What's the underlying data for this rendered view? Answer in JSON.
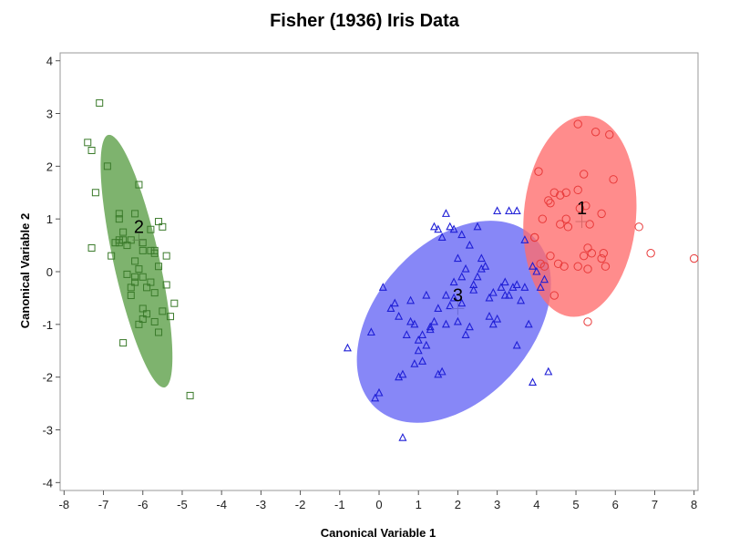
{
  "chart_data": {
    "type": "scatter",
    "title": "Fisher (1936) Iris Data",
    "xlabel": "Canonical Variable 1",
    "ylabel": "Canonical Variable 2",
    "xlim": [
      -8.1,
      8.1
    ],
    "ylim": [
      -4.15,
      4.15
    ],
    "xticks": [
      -8,
      -7,
      -6,
      -5,
      -4,
      -3,
      -2,
      -1,
      0,
      1,
      2,
      3,
      4,
      5,
      6,
      7,
      8
    ],
    "yticks": [
      -4,
      -3,
      -2,
      -1,
      0,
      1,
      2,
      3,
      4
    ],
    "grid": false,
    "legend": "none",
    "series": [
      {
        "label": "2",
        "marker": "square",
        "color": "#3a7a2a",
        "ellipse_color": "#5a9e45",
        "centroid": [
          -6.1,
          0.6
        ],
        "ellipse": {
          "cx": -6.16,
          "cy": 0.2,
          "rx": 2.5,
          "ry": 0.57,
          "angle_deg": -73
        },
        "x": [
          -7.1,
          -7.4,
          -7.3,
          -7.2,
          -6.9,
          -7.3,
          -6.8,
          -6.6,
          -6.6,
          -6.5,
          -6.4,
          -6.3,
          -6.2,
          -6.1,
          -6.0,
          -6.0,
          -6.6,
          -6.5,
          -6.7,
          -6.6,
          -6.2,
          -6.3,
          -6.0,
          -5.9,
          -5.8,
          -5.7,
          -5.6,
          -5.5,
          -5.7,
          -5.8,
          -5.6,
          -5.4,
          -5.2,
          -6.3,
          -6.0,
          -6.0,
          -6.1,
          -6.2,
          -5.5,
          -5.3,
          -5.7,
          -5.6,
          -5.9,
          -6.2,
          -6.4,
          -5.8,
          -5.4,
          -5.7,
          -6.1,
          -6.5,
          -4.8
        ],
        "y": [
          3.2,
          2.45,
          2.3,
          1.5,
          2.0,
          0.45,
          0.3,
          1.0,
          0.55,
          0.6,
          0.5,
          0.6,
          1.1,
          1.65,
          0.4,
          0.55,
          1.1,
          0.75,
          0.55,
          0.6,
          -0.1,
          -0.3,
          -0.1,
          -0.3,
          0.8,
          0.4,
          0.95,
          0.85,
          0.35,
          0.4,
          0.1,
          0.3,
          -0.6,
          -0.45,
          -0.7,
          -0.9,
          0.05,
          0.2,
          -0.75,
          -0.85,
          -0.95,
          -1.15,
          -0.8,
          -0.2,
          -0.05,
          -0.2,
          -0.25,
          -0.4,
          -1.0,
          -1.35,
          -2.35
        ]
      },
      {
        "label": "3",
        "marker": "triangle",
        "color": "#1f1fd6",
        "ellipse_color": "#6565f5",
        "centroid": [
          2.0,
          -0.7
        ],
        "ellipse": {
          "cx": 1.9,
          "cy": -0.95,
          "rx": 2.65,
          "ry": 1.65,
          "angle_deg": 28
        },
        "x": [
          -0.8,
          -0.2,
          -0.1,
          0.0,
          0.5,
          0.6,
          0.1,
          0.4,
          0.8,
          0.8,
          0.9,
          1.0,
          1.0,
          0.9,
          1.1,
          1.2,
          1.3,
          1.4,
          1.5,
          1.6,
          1.7,
          1.8,
          1.9,
          2.0,
          2.1,
          2.2,
          2.3,
          2.4,
          2.5,
          2.6,
          2.7,
          2.8,
          2.9,
          3.0,
          3.1,
          3.2,
          3.3,
          3.4,
          3.5,
          3.6,
          3.7,
          3.8,
          3.9,
          4.0,
          4.1,
          4.2,
          1.4,
          1.5,
          1.6,
          1.8,
          1.9,
          2.1,
          2.3,
          2.5,
          3.0,
          3.3,
          3.5,
          3.7,
          1.2,
          1.7,
          2.0,
          2.2,
          2.4,
          2.6,
          2.8,
          3.2,
          0.3,
          0.5,
          0.7,
          1.1,
          1.3,
          1.5,
          1.7,
          1.9,
          2.1,
          2.9,
          3.5,
          3.9,
          4.3,
          0.6
        ],
        "y": [
          -1.45,
          -1.15,
          -2.4,
          -2.3,
          -2.0,
          -1.95,
          -0.3,
          -0.6,
          -0.55,
          -0.95,
          -1.0,
          -1.3,
          -1.5,
          -1.75,
          -1.7,
          -1.4,
          -1.1,
          -0.95,
          -1.95,
          -1.9,
          -1.0,
          -0.65,
          -0.5,
          -0.95,
          -0.6,
          -1.2,
          -1.05,
          -0.25,
          -0.1,
          0.25,
          0.1,
          -0.85,
          -0.4,
          -0.9,
          -0.3,
          -0.2,
          -0.45,
          -0.3,
          -0.25,
          -0.55,
          -0.3,
          -1.0,
          0.1,
          0.0,
          -0.3,
          -0.15,
          0.85,
          0.8,
          0.65,
          0.85,
          0.8,
          0.7,
          0.5,
          0.85,
          1.15,
          1.15,
          1.15,
          0.6,
          -0.45,
          1.1,
          0.25,
          0.05,
          -0.35,
          0.05,
          -0.5,
          -0.45,
          -0.7,
          -0.85,
          -1.2,
          -1.2,
          -1.05,
          -0.7,
          -0.45,
          -0.2,
          -0.1,
          -1.0,
          -1.4,
          -2.1,
          -1.9,
          -3.15
        ],
        "extra_points_note": ""
      },
      {
        "label": "1",
        "marker": "circle",
        "color": "#e83a3a",
        "ellipse_color": "#ff6b6b",
        "centroid": [
          5.15,
          0.95
        ],
        "ellipse": {
          "cx": 5.1,
          "cy": 1.05,
          "rx": 1.92,
          "ry": 1.42,
          "angle_deg": 80
        },
        "x": [
          5.05,
          5.5,
          5.85,
          5.2,
          5.95,
          4.05,
          4.45,
          4.6,
          4.3,
          4.75,
          5.05,
          4.35,
          5.25,
          5.1,
          4.75,
          4.6,
          4.8,
          5.35,
          5.65,
          5.7,
          6.6,
          6.9,
          5.3,
          5.4,
          4.7,
          3.95,
          4.1,
          4.2,
          4.35,
          4.45,
          5.05,
          5.3,
          5.75,
          5.65,
          3.95,
          8.0,
          5.3,
          5.2,
          4.55,
          4.15
        ],
        "y": [
          2.8,
          2.65,
          2.6,
          1.85,
          1.75,
          1.9,
          1.5,
          1.45,
          1.35,
          1.5,
          1.55,
          1.3,
          1.25,
          1.2,
          1.0,
          0.9,
          0.85,
          0.9,
          1.1,
          0.35,
          0.85,
          0.35,
          0.45,
          0.35,
          0.1,
          0.65,
          0.15,
          0.1,
          0.3,
          -0.45,
          0.1,
          0.05,
          0.1,
          0.25,
          0.65,
          0.25,
          -0.95,
          0.3,
          0.15,
          1.0
        ]
      }
    ]
  }
}
